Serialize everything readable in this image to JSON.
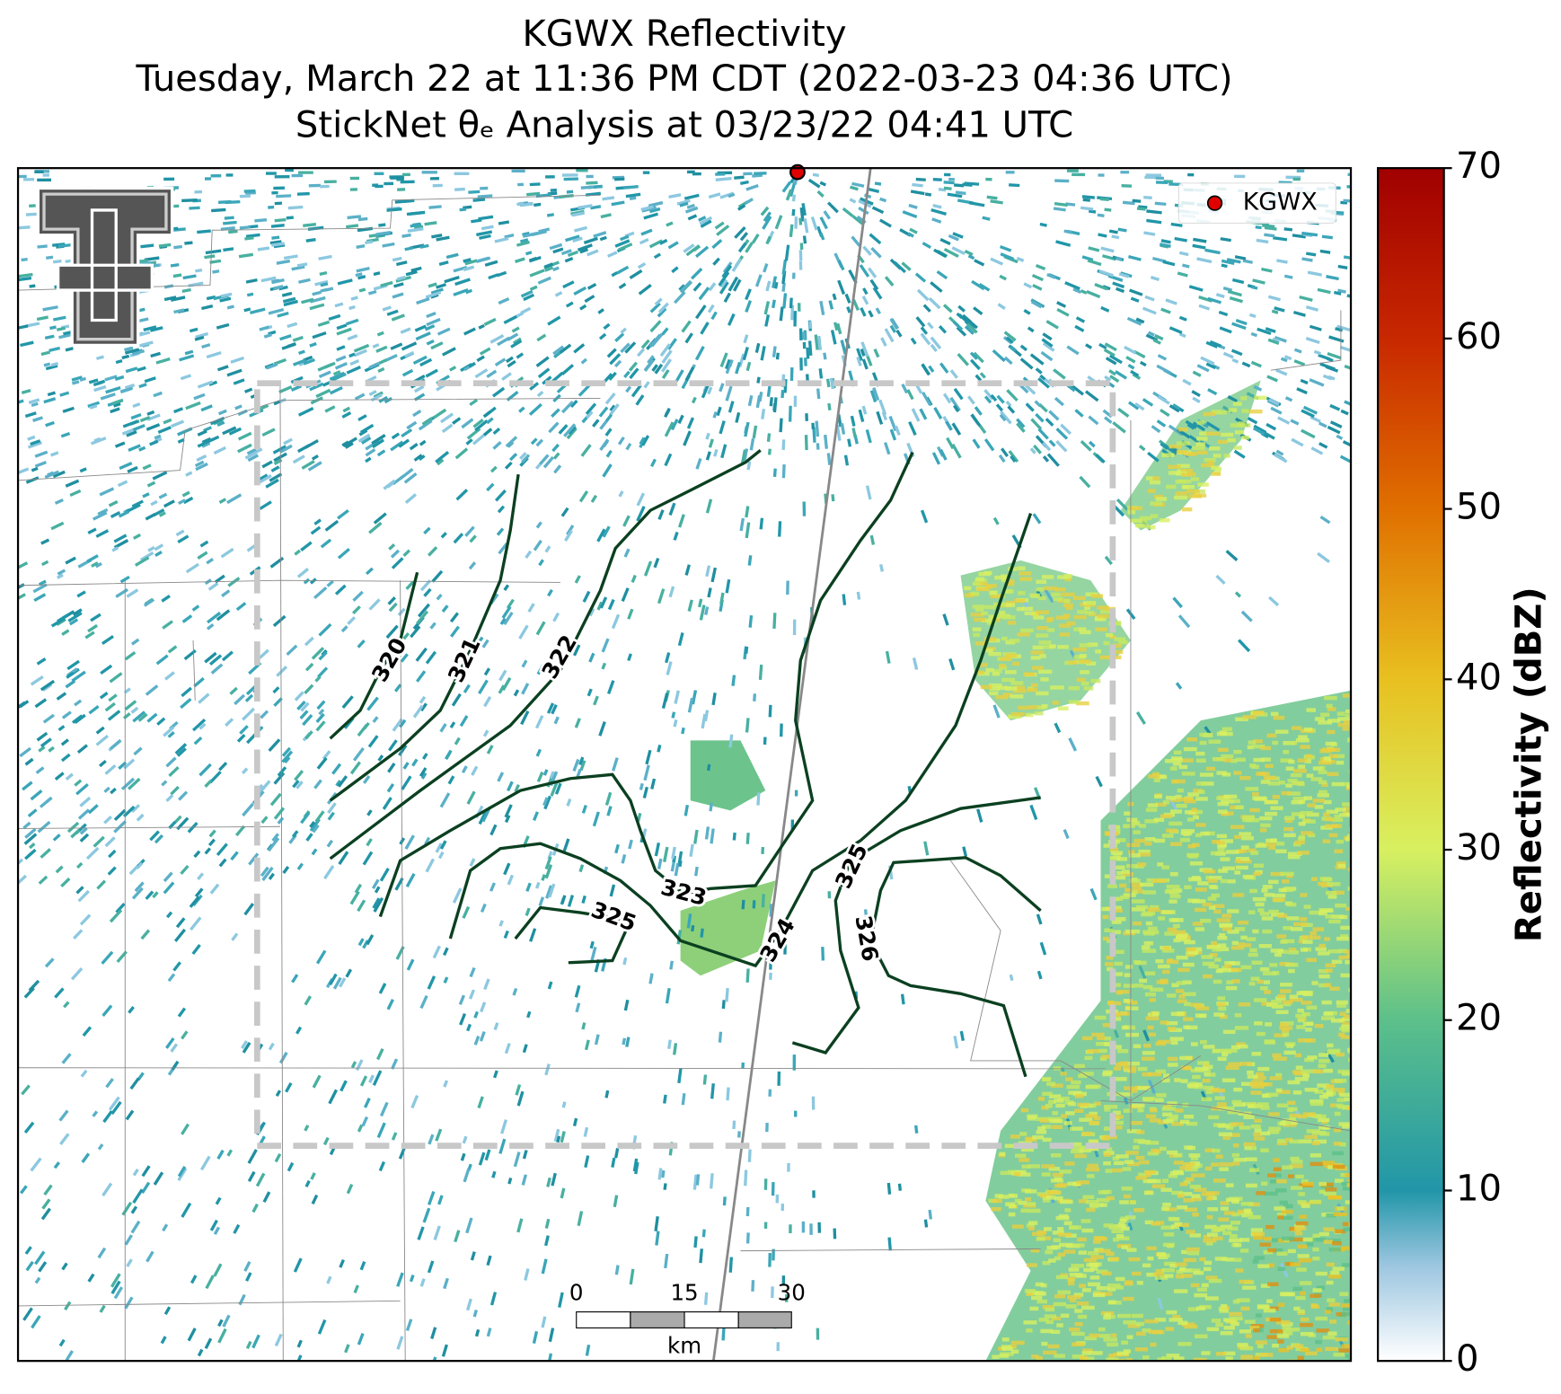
{
  "header": {
    "title_line1": "KGWX Reflectivity",
    "title_line2": "Tuesday, March 22 at 11:36 PM CDT (2022-03-23 04:36 UTC)",
    "title_line3": "StickNet θₑ Analysis at 03/23/22 04:41 UTC"
  },
  "legend": {
    "label": "KGWX",
    "color": "#e00000"
  },
  "contours": {
    "labels": [
      "320",
      "321",
      "322",
      "323",
      "325",
      "324",
      "325",
      "326"
    ],
    "color": "#0b4020"
  },
  "scale_bar": {
    "ticks": [
      "0",
      "15",
      "30"
    ],
    "unit": "km"
  },
  "colorbar": {
    "label": "Reflectivity (dBZ)",
    "lim": [
      0,
      70
    ],
    "ticks": [
      0,
      10,
      20,
      30,
      40,
      50,
      60,
      70
    ]
  }
}
